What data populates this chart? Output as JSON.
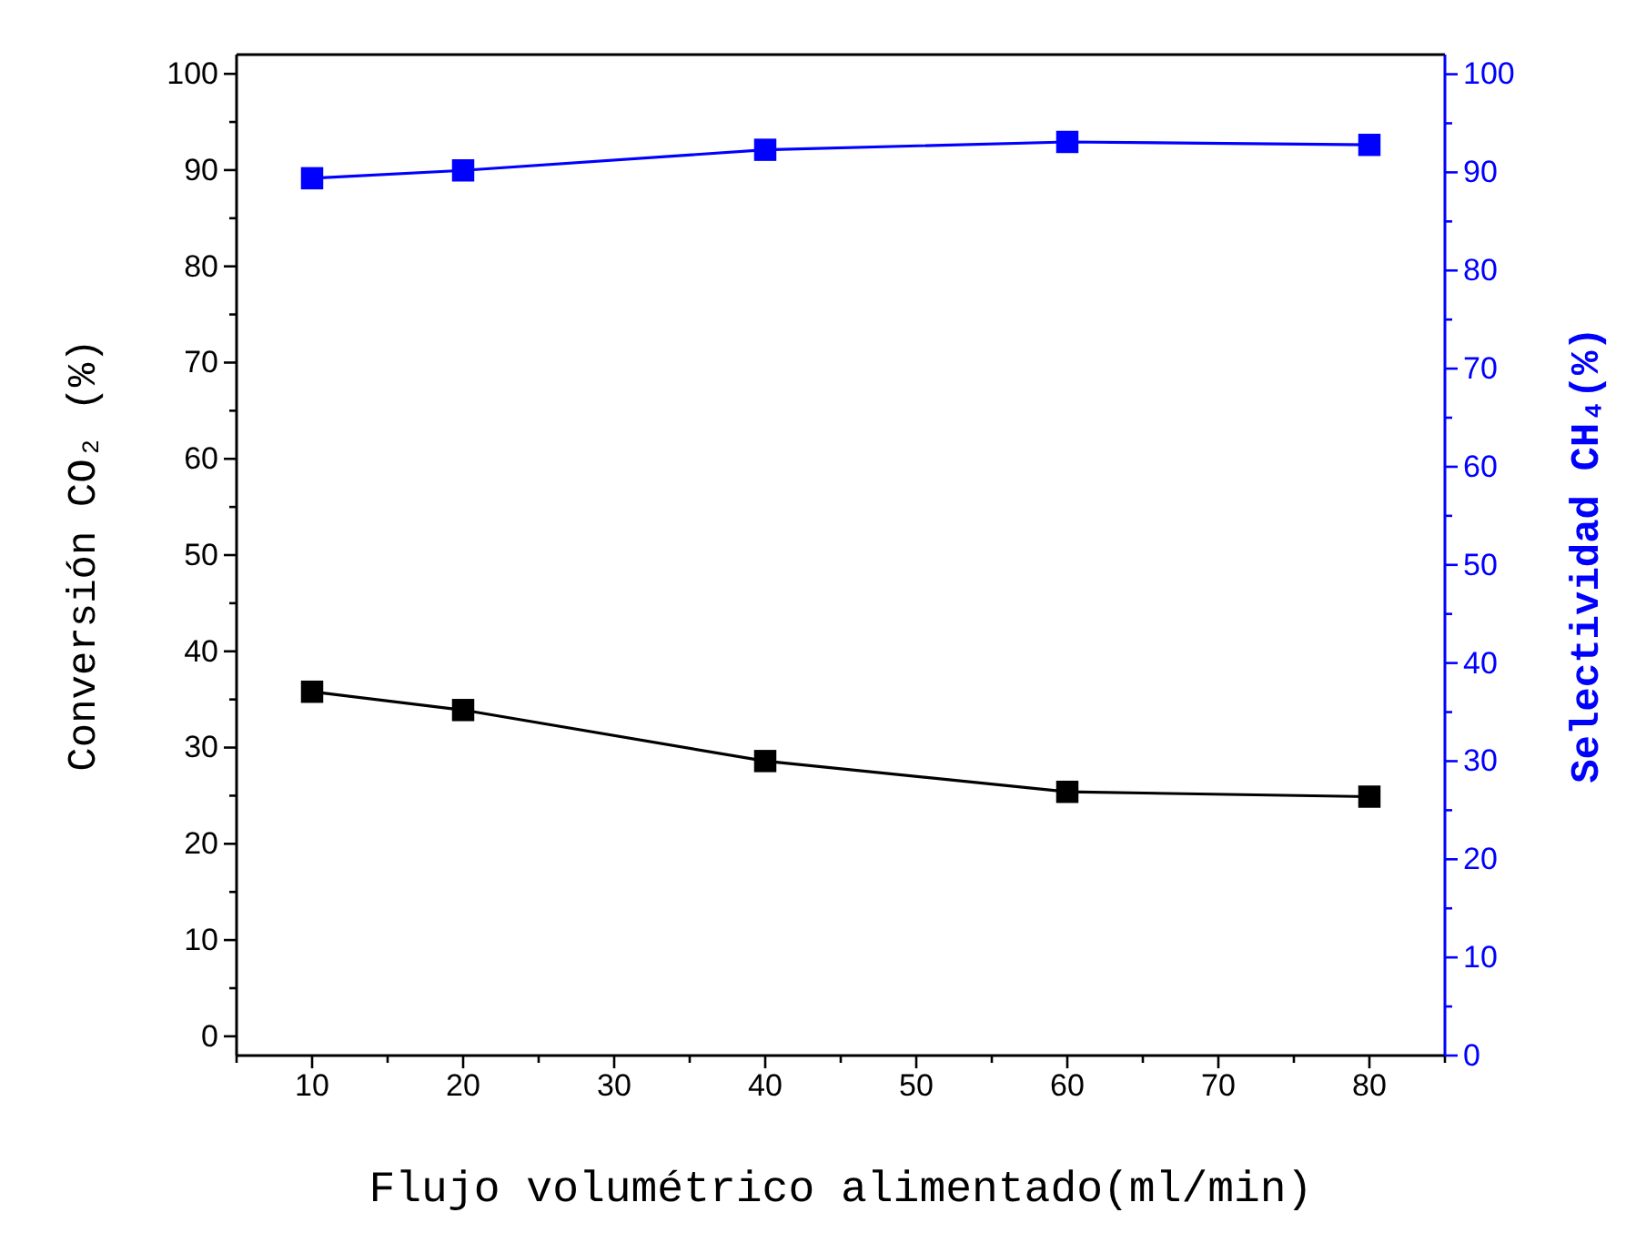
{
  "chart_data": {
    "type": "line",
    "xlabel": "Flujo volumétrico alimentado(ml/min)",
    "ylabel": "Conversión CO₂ (%)",
    "y2label": "Selectividad CH₄(%)",
    "x": [
      10,
      20,
      40,
      60,
      80
    ],
    "series": [
      {
        "color": "#000000",
        "values": [
          35.8,
          33.9,
          28.6,
          25.4,
          24.9
        ]
      },
      {
        "color": "#0000ff",
        "axis": "y2",
        "values": [
          89.4,
          90.2,
          92.3,
          93.1,
          92.8
        ]
      }
    ],
    "xlim": [
      5,
      85
    ],
    "xticks": [
      {
        "value": 5,
        "label": null
      },
      10,
      {
        "value": 15,
        "label": null
      },
      20,
      {
        "value": 25,
        "label": null
      },
      30,
      {
        "value": 35,
        "label": null
      },
      40,
      {
        "value": 45,
        "label": null
      },
      50,
      {
        "value": 55,
        "label": null
      },
      60,
      {
        "value": 65,
        "label": null
      },
      70,
      {
        "value": 75,
        "label": null
      },
      80,
      {
        "value": 85,
        "label": null
      }
    ],
    "ylim": [
      -2,
      102
    ],
    "yticks": [
      0,
      {
        "value": 5,
        "label": null
      },
      10,
      {
        "value": 15,
        "label": null
      },
      20,
      {
        "value": 25,
        "label": null
      },
      30,
      {
        "value": 35,
        "label": null
      },
      40,
      {
        "value": 45,
        "label": null
      },
      50,
      {
        "value": 55,
        "label": null
      },
      60,
      {
        "value": 65,
        "label": null
      },
      70,
      {
        "value": 75,
        "label": null
      },
      80,
      {
        "value": 85,
        "label": null
      },
      90,
      {
        "value": 95,
        "label": null
      },
      100
    ],
    "y2lim": [
      0,
      102
    ],
    "y2ticks": [
      0,
      {
        "value": 5,
        "label": null
      },
      10,
      {
        "value": 15,
        "label": null
      },
      20,
      {
        "value": 25,
        "label": null
      },
      30,
      {
        "value": 35,
        "label": null
      },
      40,
      {
        "value": 45,
        "label": null
      },
      50,
      {
        "value": 55,
        "label": null
      },
      60,
      {
        "value": 65,
        "label": null
      },
      70,
      {
        "value": 75,
        "label": null
      },
      80,
      {
        "value": 85,
        "label": null
      },
      90,
      {
        "value": 95,
        "label": null
      },
      100
    ],
    "marker": "square"
  }
}
